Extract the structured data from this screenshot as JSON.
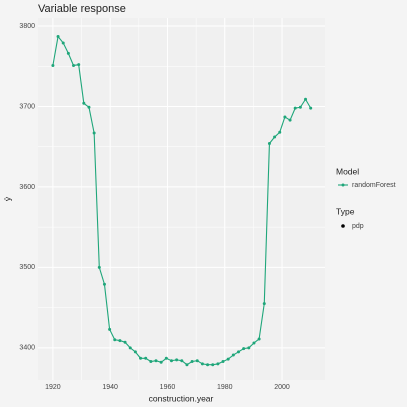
{
  "chart_data": {
    "type": "line",
    "title": "Variable response",
    "x_label": "construction.year",
    "y_label": "ŷ",
    "x": [
      1920,
      1921.8,
      1923.6,
      1925.4,
      1927.2,
      1929,
      1930.8,
      1932.6,
      1934.4,
      1936.2,
      1938,
      1939.8,
      1941.6,
      1943.4,
      1945.2,
      1947,
      1948.8,
      1950.6,
      1952.4,
      1954.2,
      1956,
      1957.8,
      1959.6,
      1961.4,
      1963.2,
      1965,
      1966.8,
      1968.6,
      1970.4,
      1972.2,
      1974,
      1975.8,
      1977.6,
      1979.4,
      1981.2,
      1983,
      1984.8,
      1986.6,
      1988.4,
      1990.2,
      1992,
      1993.8,
      1995.6,
      1997.4,
      1999.2,
      2001,
      2002.8,
      2004.6,
      2006.4,
      2008.2,
      2010
    ],
    "series": [
      {
        "name": "randomForest",
        "color": "#1fa67a",
        "values": [
          3751,
          3787,
          3779,
          3766,
          3751,
          3752,
          3704,
          3699,
          3667,
          3500,
          3479,
          3423,
          3410,
          3409,
          3407,
          3400,
          3395,
          3387,
          3387,
          3383,
          3384,
          3382,
          3387,
          3384,
          3385,
          3384,
          3379,
          3383,
          3384,
          3380,
          3379,
          3379,
          3380,
          3383,
          3386,
          3391,
          3395,
          3399,
          3400,
          3406,
          3411,
          3455,
          3654,
          3662,
          3668,
          3687,
          3683,
          3698,
          3699,
          3709,
          3698
        ]
      }
    ],
    "xlim": [
      1914.8,
      2015
    ],
    "ylim": [
      3360,
      3810
    ],
    "xticks": [
      1920,
      1940,
      1960,
      1980,
      2000
    ],
    "yticks": [
      3400,
      3500,
      3600,
      3700,
      3800
    ],
    "grid": true,
    "legend": {
      "position": "right",
      "model_title": "Model",
      "type_title": "Type",
      "type_entry": "pdp"
    }
  }
}
